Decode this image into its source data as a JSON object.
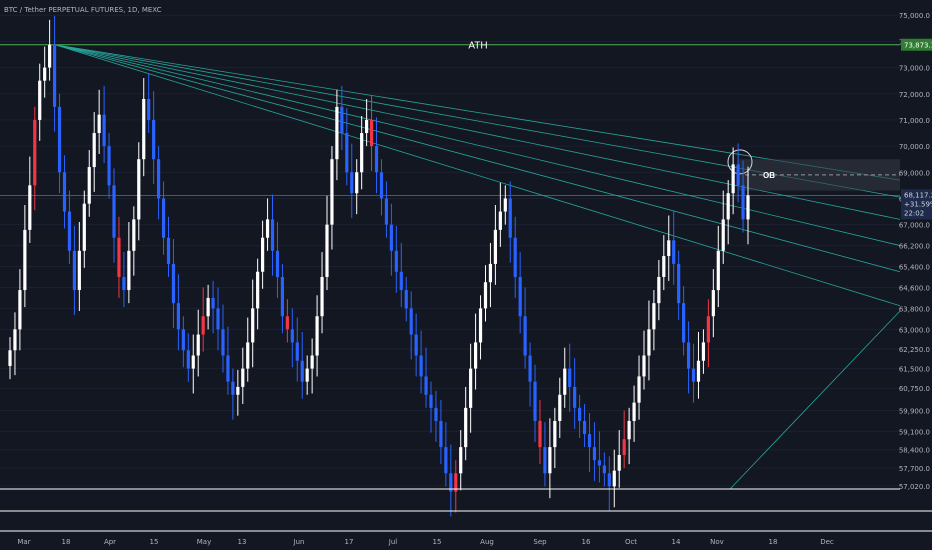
{
  "header": {
    "title": "BTC / Tether PERPETUAL FUTURES, 1D, MEXC"
  },
  "annotations": {
    "ath": "ATH",
    "ob": "OB"
  },
  "price_badge": {
    "price": "68,117.2",
    "change": "+31.59%",
    "time": "22:02"
  },
  "ath_badge": {
    "value": "73,873.3"
  },
  "colors": {
    "background": "#131722",
    "bull": "#ffffff",
    "bear": "#2962ff",
    "extreme": "#f23645",
    "fan": "#26a69a",
    "ath_line": "#4caf50",
    "ob_box": "#363a45"
  },
  "chart_data": {
    "type": "candlestick",
    "y_ticks": [
      "75,000.0",
      "74,000.0",
      "73,000.0",
      "72,000.0",
      "71,000.0",
      "70,000.0",
      "69,000.0",
      "68,000.0",
      "67,000.0",
      "66,200.0",
      "65,400.0",
      "64,600.0",
      "63,800.0",
      "63,000.0",
      "62,250.0",
      "61,500.0",
      "60,750.0",
      "59,900.0",
      "59,100.0",
      "58,400.0",
      "57,700.0",
      "57,020.0"
    ],
    "x_ticks": [
      "Mar",
      "18",
      "Apr",
      "15",
      "May",
      "13",
      "Jun",
      "17",
      "Jul",
      "15",
      "Aug",
      "Sep",
      "16",
      "Oct",
      "14",
      "Nov",
      "18",
      "Dec"
    ],
    "ath_value": 73873.3,
    "current_price": 68117.2,
    "ob_zone": [
      68300,
      69500
    ],
    "series": [
      {
        "values": [
          62200,
          63000,
          64500,
          66800,
          68500,
          71000,
          72500,
          73000,
          73873,
          71500,
          69000,
          67500,
          66000,
          64500,
          66000,
          67800,
          69200,
          70500,
          71200,
          70000,
          68500,
          66500,
          65000,
          64500,
          66000,
          67200,
          69500,
          71800,
          71000,
          69500,
          68000,
          66500,
          65500,
          64000,
          63000,
          62200,
          61500,
          62000,
          62800,
          63500,
          64200,
          63800,
          63000,
          62000,
          61000,
          60500,
          60800,
          61500,
          62500,
          63800,
          65200,
          66500,
          67200,
          66000,
          65000,
          63500,
          63000,
          62500,
          61800,
          61000,
          61500,
          62000,
          63500,
          65000,
          67000,
          69500,
          71500,
          70500,
          69000,
          68200,
          69000,
          70500,
          71000,
          70000,
          69000,
          68000,
          67000,
          66000,
          65200,
          64500,
          63800,
          62800,
          62000,
          61200,
          60500,
          60000,
          59500,
          58500,
          57500,
          56800,
          57500,
          58500,
          60000,
          61500,
          62500,
          63800,
          64800,
          65500,
          66800,
          67500,
          68000,
          66500,
          65000,
          63500,
          62000,
          61000,
          59500,
          58500,
          57500,
          58500,
          59500,
          60500,
          61500,
          60800,
          60000,
          59500,
          59000,
          58500,
          58000,
          57800,
          57500,
          57000,
          57600,
          58200,
          58800,
          59500,
          60200,
          61200,
          62000,
          63000,
          64000,
          65000,
          65800,
          66400,
          65500,
          64000,
          62500,
          61500,
          61000,
          61800,
          62500,
          63500,
          64500,
          66000,
          67200,
          68200,
          69300,
          68500,
          67200,
          68117
        ]
      }
    ]
  }
}
